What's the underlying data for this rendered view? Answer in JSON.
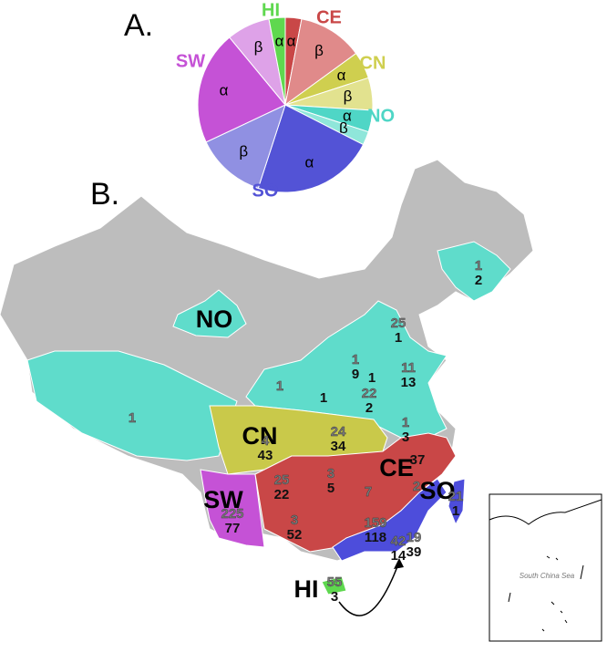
{
  "chart_data": {
    "type": "pie",
    "panel_label": "A.",
    "categories": [
      "α",
      "β",
      "α",
      "β",
      "α",
      "β",
      "α",
      "β",
      "α",
      "β",
      "α"
    ],
    "values": [
      3,
      12,
      5,
      6,
      4,
      2.5,
      22.5,
      13,
      21,
      8,
      3
    ],
    "colors": [
      "#c94747",
      "#e08a8a",
      "#cfcf4f",
      "#e2e28f",
      "#4fd6c6",
      "#8fe6da",
      "#5353d6",
      "#9090e2",
      "#c552d6",
      "#dea2e8",
      "#5fd84f"
    ],
    "group_labels": [
      "HI",
      "CE",
      "CN",
      "NO",
      "SO",
      "SW"
    ],
    "group_colors": [
      "#5fd84f",
      "#c94747",
      "#cfcf4f",
      "#4fd6c6",
      "#5353d6",
      "#c552d6"
    ]
  },
  "map": {
    "panel_label": "B.",
    "region_labels": [
      "NO",
      "CN",
      "SW",
      "CE",
      "SO",
      "HI"
    ],
    "counts": [
      {
        "top": 1,
        "bottom": 2
      },
      {
        "top": 25,
        "bottom": 1
      },
      {
        "top": 1,
        "bottom": 9
      },
      {
        "top": 11,
        "bottom": 13
      },
      {
        "top": 22,
        "bottom": 2
      },
      {
        "top": 1,
        "bottom": 3
      },
      {
        "top": 24,
        "bottom": 34
      },
      {
        "top": 1
      },
      {
        "bottom": 1
      },
      {
        "bottom": 1
      },
      {
        "top": 1
      },
      {
        "top": 4,
        "bottom": 43
      },
      {
        "top": 25,
        "bottom": 22
      },
      {
        "top": 3,
        "bottom": 5
      },
      {
        "bottom": 37
      },
      {
        "top": 7
      },
      {
        "top": 2
      },
      {
        "top": 225,
        "bottom": 77
      },
      {
        "top": 3,
        "bottom": 52
      },
      {
        "top": 159,
        "bottom": 118
      },
      {
        "top": 42,
        "bottom": 14
      },
      {
        "top": 19,
        "bottom": 39
      },
      {
        "top": 21,
        "bottom": 1
      },
      {
        "top": 55,
        "bottom": 3
      }
    ],
    "inset_label": "South China Sea"
  }
}
